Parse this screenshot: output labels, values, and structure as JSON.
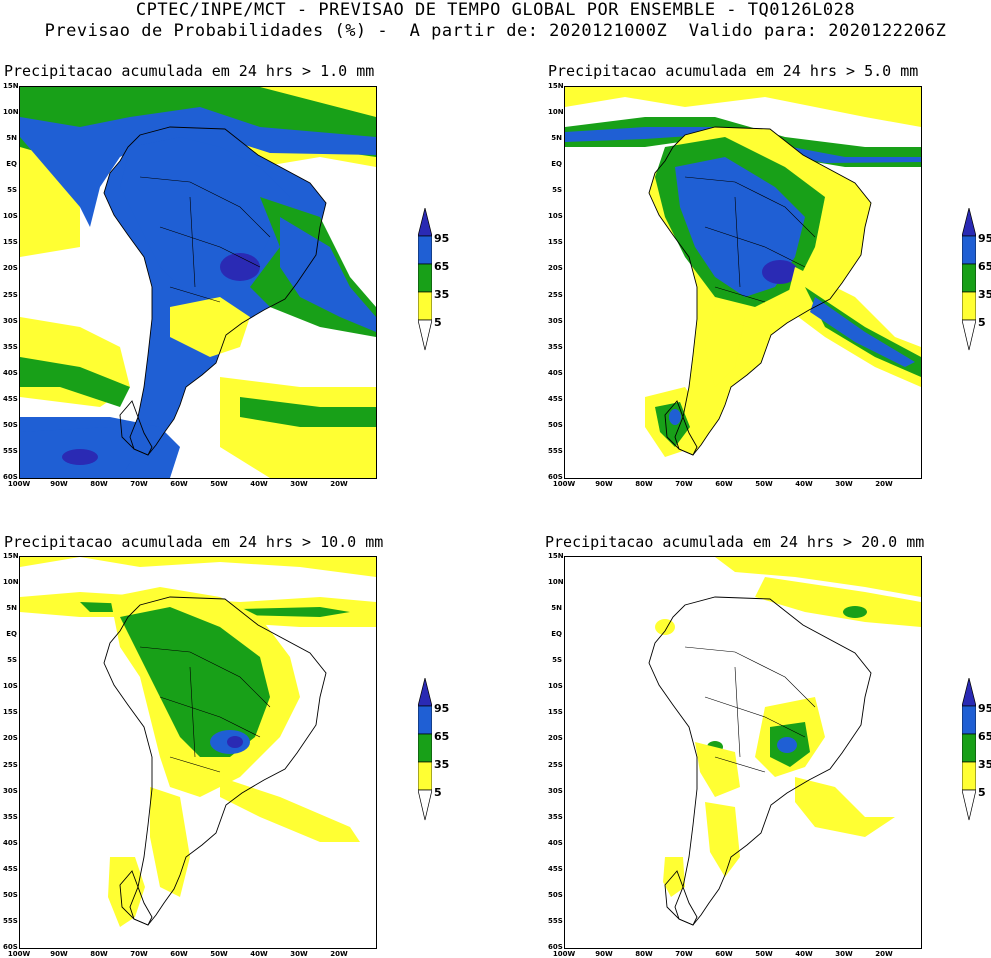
{
  "header": {
    "line1": "CPTEC/INPE/MCT - PREVISAO DE TEMPO GLOBAL POR ENSEMBLE - TQ0126L028",
    "line2": "Previsao de Probabilidades (%) -  A partir de: 2020121000Z  Valido para: 2020122206Z"
  },
  "panels": [
    {
      "title": "Precipitacao acumulada em 24 hrs > 1.0 mm",
      "threshold": "1.0 mm"
    },
    {
      "title": "Precipitacao acumulada em 24 hrs > 5.0 mm",
      "threshold": "5.0 mm"
    },
    {
      "title": "Precipitacao acumulada em 24 hrs > 10.0 mm",
      "threshold": "10.0 mm"
    },
    {
      "title": "Precipitacao acumulada em 24 hrs > 20.0 mm",
      "threshold": "20.0 mm"
    }
  ],
  "lat_labels": [
    "15N",
    "10N",
    "5N",
    "EQ",
    "5S",
    "10S",
    "15S",
    "20S",
    "25S",
    "30S",
    "35S",
    "40S",
    "45S",
    "50S",
    "55S",
    "60S"
  ],
  "lon_labels": [
    "100W",
    "90W",
    "80W",
    "70W",
    "60W",
    "50W",
    "40W",
    "30W",
    "20W"
  ],
  "legend": {
    "labels": [
      "95",
      "65",
      "35",
      "5"
    ],
    "colors": {
      "c5": "#ffff33",
      "c35": "#18a018",
      "c65": "#1f5fd4",
      "c95": "#2a2ab4",
      "land_outline": "#000000"
    }
  }
}
